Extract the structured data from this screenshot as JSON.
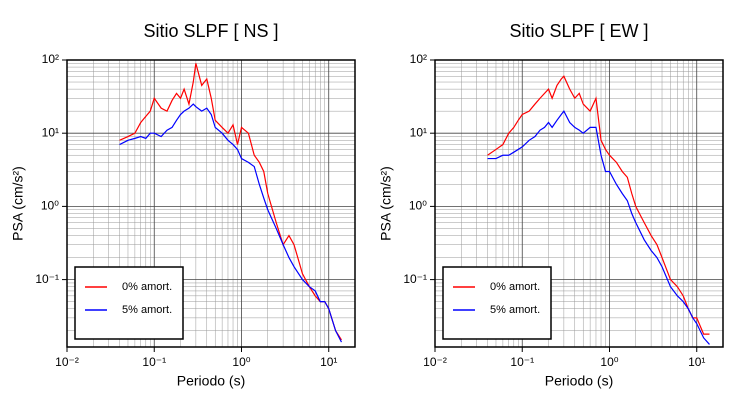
{
  "chart_data": [
    {
      "type": "line",
      "title": "Sitio SLPF [ NS ]",
      "xlabel": "Periodo (s)",
      "ylabel": "PSA (cm/s²)",
      "xscale": "log",
      "yscale": "log",
      "grid": true,
      "legend": "lower left",
      "xlim": [
        0.01,
        20
      ],
      "ylim": [
        0.012,
        100
      ],
      "xticks": [
        {
          "value": 0.01,
          "label": "10⁻²"
        },
        {
          "value": 0.1,
          "label": "10⁻¹"
        },
        {
          "value": 1,
          "label": "10⁰"
        },
        {
          "value": 10,
          "label": "10¹"
        }
      ],
      "yticks": [
        {
          "value": 0.1,
          "label": "10⁻¹"
        },
        {
          "value": 1,
          "label": "10⁰"
        },
        {
          "value": 10,
          "label": "10¹"
        },
        {
          "value": 100,
          "label": "10²"
        }
      ],
      "x": [
        0.04,
        0.05,
        0.06,
        0.07,
        0.08,
        0.09,
        0.1,
        0.12,
        0.14,
        0.16,
        0.18,
        0.2,
        0.22,
        0.25,
        0.28,
        0.3,
        0.35,
        0.4,
        0.45,
        0.5,
        0.6,
        0.7,
        0.8,
        0.9,
        1.0,
        1.2,
        1.4,
        1.6,
        1.8,
        2,
        2.5,
        3,
        3.5,
        4,
        5,
        6,
        7,
        8,
        9,
        10,
        12,
        14
      ],
      "series": [
        {
          "name": "0% amort.",
          "color": "#ff0000",
          "values": [
            8,
            9,
            10,
            14,
            17,
            20,
            30,
            22,
            20,
            28,
            35,
            30,
            40,
            25,
            50,
            90,
            45,
            55,
            30,
            15,
            12,
            10,
            13,
            7,
            12,
            10,
            5,
            4,
            3,
            1.5,
            0.6,
            0.3,
            0.4,
            0.3,
            0.12,
            0.08,
            0.06,
            0.05,
            0.05,
            0.04,
            0.02,
            0.015
          ]
        },
        {
          "name": "5% amort.",
          "color": "#0000ff",
          "values": [
            7,
            8,
            8.5,
            9,
            8.5,
            10,
            10,
            9,
            11,
            12,
            15,
            18,
            20,
            22,
            25,
            23,
            20,
            22,
            18,
            12,
            10,
            8,
            7,
            6,
            4.5,
            4,
            3.5,
            2,
            1.3,
            0.9,
            0.5,
            0.3,
            0.2,
            0.15,
            0.1,
            0.08,
            0.07,
            0.05,
            0.05,
            0.04,
            0.02,
            0.014
          ]
        }
      ]
    },
    {
      "type": "line",
      "title": "Sitio SLPF [ EW ]",
      "xlabel": "Periodo (s)",
      "ylabel": "PSA (cm/s²)",
      "xscale": "log",
      "yscale": "log",
      "grid": true,
      "legend": "lower left",
      "xlim": [
        0.01,
        20
      ],
      "ylim": [
        0.012,
        100
      ],
      "xticks": [
        {
          "value": 0.01,
          "label": "10⁻²"
        },
        {
          "value": 0.1,
          "label": "10⁻¹"
        },
        {
          "value": 1,
          "label": "10⁰"
        },
        {
          "value": 10,
          "label": "10¹"
        }
      ],
      "yticks": [
        {
          "value": 0.1,
          "label": "10⁻¹"
        },
        {
          "value": 1,
          "label": "10⁰"
        },
        {
          "value": 10,
          "label": "10¹"
        },
        {
          "value": 100,
          "label": "10²"
        }
      ],
      "x": [
        0.04,
        0.05,
        0.06,
        0.07,
        0.08,
        0.09,
        0.1,
        0.12,
        0.14,
        0.16,
        0.18,
        0.2,
        0.22,
        0.25,
        0.28,
        0.3,
        0.35,
        0.4,
        0.45,
        0.5,
        0.6,
        0.7,
        0.8,
        0.9,
        1.0,
        1.2,
        1.4,
        1.6,
        1.8,
        2,
        2.5,
        3,
        3.5,
        4,
        5,
        6,
        7,
        8,
        9,
        10,
        12,
        14
      ],
      "series": [
        {
          "name": "0% amort.",
          "color": "#ff0000",
          "values": [
            5,
            6,
            7,
            10,
            12,
            15,
            18,
            20,
            25,
            30,
            35,
            40,
            30,
            45,
            55,
            60,
            40,
            30,
            35,
            25,
            20,
            30,
            8,
            6,
            5,
            4,
            3,
            2.5,
            1.5,
            1.0,
            0.6,
            0.4,
            0.3,
            0.2,
            0.1,
            0.08,
            0.06,
            0.04,
            0.03,
            0.03,
            0.018,
            0.018
          ]
        },
        {
          "name": "5% amort.",
          "color": "#0000ff",
          "values": [
            4.5,
            4.5,
            5,
            5,
            5.5,
            6,
            6.5,
            8,
            9,
            11,
            12,
            14,
            12,
            15,
            18,
            20,
            14,
            12,
            11,
            10,
            12,
            12,
            5,
            3,
            3,
            2,
            1.5,
            1.2,
            0.8,
            0.6,
            0.35,
            0.25,
            0.2,
            0.15,
            0.08,
            0.06,
            0.05,
            0.04,
            0.03,
            0.025,
            0.016,
            0.013
          ]
        }
      ]
    }
  ]
}
